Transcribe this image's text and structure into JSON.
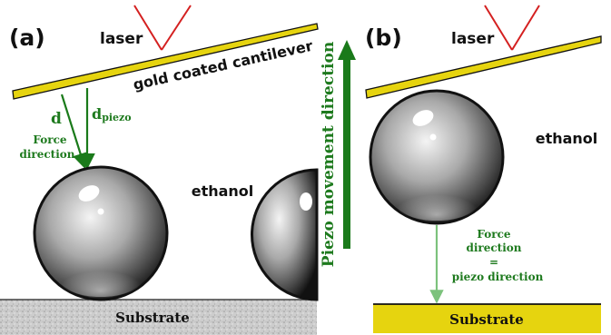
{
  "panel_a": {
    "label": "(a)",
    "laser": "laser",
    "cantilever": "gold coated cantilever",
    "d": "d",
    "d_piezo_main": "d",
    "d_piezo_sub": "piezo",
    "force_line1": "Force",
    "force_line2": "direction",
    "ethanol": "ethanol",
    "substrate": "Substrate"
  },
  "middle": {
    "piezo_label": "Piezo movement direction"
  },
  "panel_b": {
    "label": "(b)",
    "laser": "laser",
    "ethanol": "ethanol",
    "force_line1": "Force",
    "force_line2": "direction",
    "force_line3": "=",
    "force_line4": "piezo direction",
    "substrate": "Substrate"
  },
  "colors": {
    "gold": "#e6d40f",
    "green_dark": "#1a7a1a",
    "green_light": "#7cc27c",
    "laser_red": "#d42020",
    "substrate_gray": "#c8c8c8"
  }
}
